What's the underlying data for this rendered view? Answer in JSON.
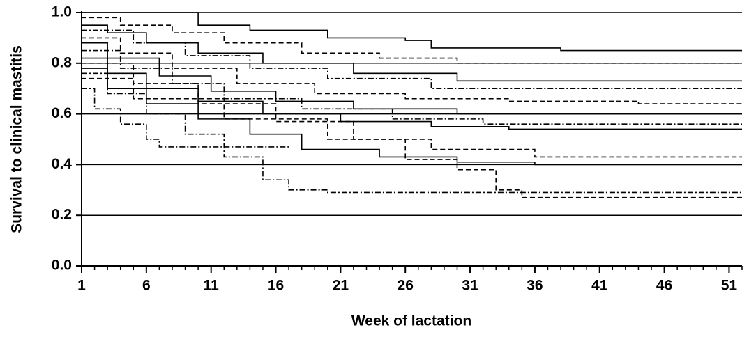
{
  "chart_data": {
    "type": "line",
    "step": true,
    "xlabel": "Week of lactation",
    "ylabel": "Survival to clinical mastitis",
    "xlim": [
      1,
      52
    ],
    "xticks": [
      1,
      6,
      11,
      16,
      21,
      26,
      31,
      36,
      41,
      46,
      51
    ],
    "minor_xtick_step": 1,
    "ylim": [
      0,
      1
    ],
    "yticks": [
      {
        "value": 0,
        "label": "0.0"
      },
      {
        "value": 0.2,
        "label": "0.2"
      },
      {
        "value": 0.4,
        "label": "0.4"
      },
      {
        "value": 0.6,
        "label": "0.6"
      },
      {
        "value": 0.8,
        "label": "0.8"
      },
      {
        "value": 1,
        "label": "1.0"
      }
    ],
    "grid": true,
    "color": "#000000",
    "series": [
      {
        "dash": "solid",
        "x": [
          1,
          9,
          10,
          14,
          20,
          26,
          28,
          38,
          52
        ],
        "values": [
          1.0,
          1.0,
          0.95,
          0.93,
          0.9,
          0.89,
          0.86,
          0.85,
          0.85
        ]
      },
      {
        "dash": "dashed",
        "x": [
          1,
          4,
          8,
          12,
          18,
          24,
          30,
          40,
          52
        ],
        "values": [
          0.98,
          0.95,
          0.92,
          0.88,
          0.84,
          0.82,
          0.8,
          0.8,
          0.8
        ]
      },
      {
        "dash": "solid",
        "x": [
          1,
          3,
          6,
          10,
          15,
          22,
          30,
          40,
          52
        ],
        "values": [
          0.95,
          0.92,
          0.88,
          0.84,
          0.8,
          0.76,
          0.73,
          0.73,
          0.73
        ]
      },
      {
        "dash": "dashdot",
        "x": [
          1,
          5,
          9,
          14,
          20,
          28,
          36,
          52
        ],
        "values": [
          0.93,
          0.88,
          0.83,
          0.78,
          0.74,
          0.7,
          0.7,
          0.7
        ]
      },
      {
        "dash": "dashed",
        "x": [
          1,
          4,
          8,
          13,
          19,
          26,
          34,
          44,
          52
        ],
        "values": [
          0.9,
          0.84,
          0.78,
          0.72,
          0.68,
          0.66,
          0.65,
          0.64,
          0.64
        ]
      },
      {
        "dash": "solid",
        "x": [
          1,
          3,
          7,
          11,
          16,
          22,
          30,
          40,
          52
        ],
        "values": [
          0.88,
          0.82,
          0.75,
          0.69,
          0.65,
          0.62,
          0.6,
          0.6,
          0.6
        ]
      },
      {
        "dash": "dashdot",
        "x": [
          1,
          4,
          8,
          12,
          18,
          25,
          32,
          52
        ],
        "values": [
          0.85,
          0.78,
          0.72,
          0.66,
          0.62,
          0.58,
          0.56,
          0.56
        ]
      },
      {
        "dash": "solid",
        "x": [
          1,
          3,
          6,
          10,
          15,
          21,
          28,
          34,
          52
        ],
        "values": [
          0.82,
          0.76,
          0.7,
          0.65,
          0.6,
          0.57,
          0.55,
          0.54,
          0.54
        ]
      },
      {
        "dash": "dashed",
        "x": [
          1,
          5,
          10,
          16,
          22,
          28,
          36,
          52
        ],
        "values": [
          0.8,
          0.72,
          0.64,
          0.57,
          0.5,
          0.46,
          0.43,
          0.43
        ]
      },
      {
        "dash": "solid",
        "x": [
          1,
          3,
          6,
          10,
          14,
          18,
          24,
          30,
          36,
          52
        ],
        "values": [
          0.78,
          0.7,
          0.64,
          0.58,
          0.52,
          0.46,
          0.43,
          0.41,
          0.4,
          0.4
        ]
      },
      {
        "dash": "dashdot",
        "x": [
          1,
          2,
          4,
          6,
          7,
          11,
          17
        ],
        "values": [
          0.7,
          0.62,
          0.56,
          0.5,
          0.47,
          0.47,
          0.47
        ]
      },
      {
        "dash": "dashdot",
        "x": [
          1,
          3,
          6,
          9,
          12,
          15,
          17,
          20,
          52
        ],
        "values": [
          0.76,
          0.68,
          0.6,
          0.52,
          0.43,
          0.34,
          0.3,
          0.29,
          0.29
        ]
      },
      {
        "dash": "dashed",
        "x": [
          1,
          5,
          12,
          20,
          26,
          30,
          33,
          35,
          52
        ],
        "values": [
          0.74,
          0.66,
          0.58,
          0.5,
          0.42,
          0.38,
          0.3,
          0.27,
          0.27
        ]
      }
    ]
  }
}
